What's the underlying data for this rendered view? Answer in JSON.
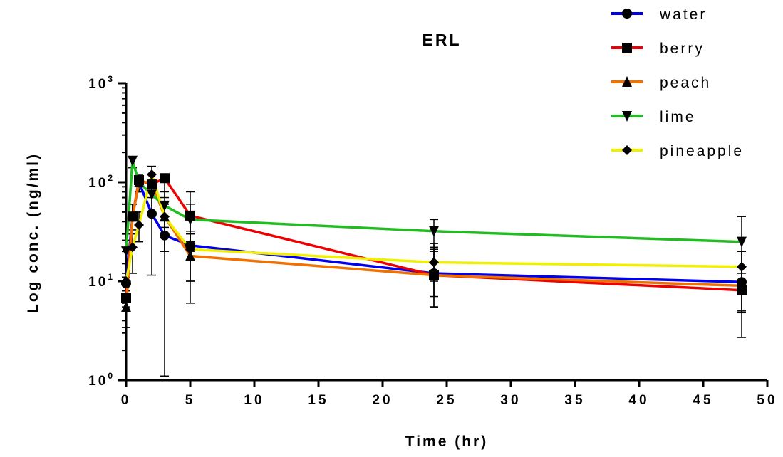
{
  "chart_data": {
    "type": "line",
    "title": "ERL",
    "xlabel": "Time (hr)",
    "ylabel": "Log conc. (ng/ml)",
    "xlim": [
      0,
      50
    ],
    "ylim": [
      1,
      1000
    ],
    "y_scale": "log",
    "x_ticks": [
      0,
      5,
      10,
      15,
      20,
      25,
      30,
      35,
      40,
      45,
      50
    ],
    "y_ticks": [
      {
        "base": "10",
        "exp": "0",
        "value": 1
      },
      {
        "base": "10",
        "exp": "1",
        "value": 10
      },
      {
        "base": "10",
        "exp": "2",
        "value": 100
      },
      {
        "base": "10",
        "exp": "3",
        "value": 1000
      }
    ],
    "legend_position": "top-right",
    "grid": false,
    "series": [
      {
        "name": "water",
        "color": "#0000ee",
        "marker": "circle",
        "points": [
          {
            "x": 0,
            "y": 9.5,
            "lo": 8,
            "hi": 11
          },
          {
            "x": 0.5,
            "y": 45,
            "lo": 30,
            "hi": 60
          },
          {
            "x": 1,
            "y": 100,
            "lo": 80,
            "hi": 115
          },
          {
            "x": 2,
            "y": 48,
            "lo": 11.5,
            "hi": 95
          },
          {
            "x": 3,
            "y": 29,
            "lo": 1.1,
            "hi": 60
          },
          {
            "x": 5,
            "y": 23,
            "lo": 10,
            "hi": 45
          },
          {
            "x": 24,
            "y": 12,
            "lo": 5.5,
            "hi": 22
          },
          {
            "x": 48,
            "y": 9.8,
            "lo": 2.7,
            "hi": 20
          }
        ]
      },
      {
        "name": "berry",
        "color": "#ee0000",
        "marker": "square",
        "points": [
          {
            "x": 0,
            "y": 6.8,
            "lo": 5.5,
            "hi": 8
          },
          {
            "x": 0.5,
            "y": 45,
            "lo": 30,
            "hi": 60
          },
          {
            "x": 1,
            "y": 105,
            "lo": 90,
            "hi": 118
          },
          {
            "x": 2,
            "y": 95,
            "lo": 70,
            "hi": 120
          },
          {
            "x": 3,
            "y": 110,
            "lo": 70,
            "hi": 115
          },
          {
            "x": 5,
            "y": 46,
            "lo": 20,
            "hi": 80
          },
          {
            "x": 24,
            "y": 11.5,
            "lo": 5.5,
            "hi": 24
          },
          {
            "x": 48,
            "y": 8.1,
            "lo": 4.8,
            "hi": 14
          }
        ]
      },
      {
        "name": "peach",
        "color": "#f07000",
        "marker": "triangle-up",
        "points": [
          {
            "x": 0,
            "y": 5.5,
            "lo": 3.4,
            "hi": 8
          },
          {
            "x": 0.5,
            "y": 45,
            "lo": 30,
            "hi": 60
          },
          {
            "x": 1,
            "y": 100,
            "lo": 80,
            "hi": 115
          },
          {
            "x": 2,
            "y": 100,
            "lo": 80,
            "hi": 120
          },
          {
            "x": 3,
            "y": 45,
            "lo": 20,
            "hi": 60
          },
          {
            "x": 5,
            "y": 18,
            "lo": 6,
            "hi": 30
          },
          {
            "x": 24,
            "y": 11.5,
            "lo": 7,
            "hi": 20
          },
          {
            "x": 48,
            "y": 9,
            "lo": 5,
            "hi": 14
          }
        ]
      },
      {
        "name": "lime",
        "color": "#22bb22",
        "marker": "triangle-down",
        "points": [
          {
            "x": 0,
            "y": 20,
            "lo": 15,
            "hi": 26
          },
          {
            "x": 0.5,
            "y": 165,
            "lo": 140,
            "hi": 180
          },
          {
            "x": 1,
            "y": 100,
            "lo": 80,
            "hi": 115
          },
          {
            "x": 2,
            "y": 75,
            "lo": 50,
            "hi": 100
          },
          {
            "x": 3,
            "y": 58,
            "lo": 35,
            "hi": 80
          },
          {
            "x": 5,
            "y": 42,
            "lo": 25,
            "hi": 60
          },
          {
            "x": 24,
            "y": 32,
            "lo": 22,
            "hi": 42
          },
          {
            "x": 48,
            "y": 25,
            "lo": 12,
            "hi": 45
          }
        ]
      },
      {
        "name": "pineapple",
        "color": "#f0f000",
        "marker": "diamond",
        "points": [
          {
            "x": 0,
            "y": 10,
            "lo": 8,
            "hi": 12
          },
          {
            "x": 0.5,
            "y": 22,
            "lo": 12,
            "hi": 33
          },
          {
            "x": 1,
            "y": 37,
            "lo": 25,
            "hi": 50
          },
          {
            "x": 2,
            "y": 120,
            "lo": 95,
            "hi": 145
          },
          {
            "x": 3,
            "y": 45,
            "lo": 20,
            "hi": 60
          },
          {
            "x": 5,
            "y": 21,
            "lo": 10,
            "hi": 32
          },
          {
            "x": 24,
            "y": 15.5,
            "lo": 10,
            "hi": 21
          },
          {
            "x": 48,
            "y": 14,
            "lo": 8,
            "hi": 20
          }
        ]
      }
    ]
  }
}
